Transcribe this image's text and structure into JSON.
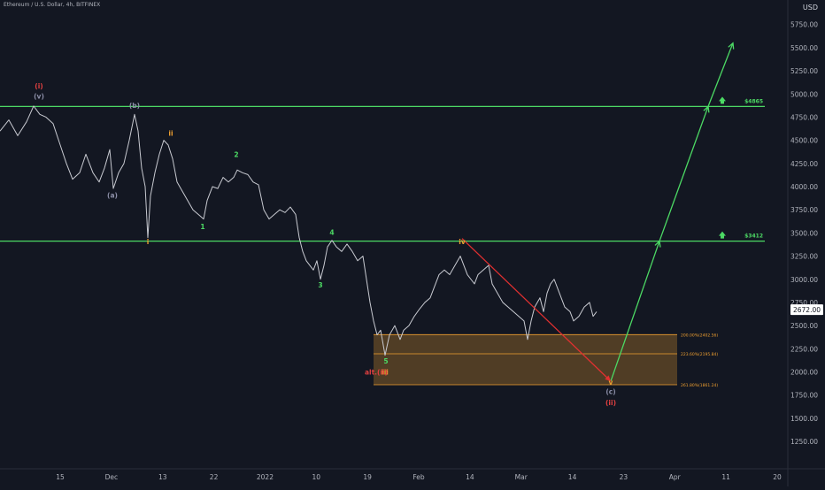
{
  "header": {
    "symbol_title": "Ethereum / U.S. Dollar, 4h, BITFINEX",
    "currency": "USD"
  },
  "chart_data": {
    "type": "line",
    "y_ticks": [
      "1250.00",
      "1500.00",
      "1750.00",
      "2000.00",
      "2250.00",
      "2500.00",
      "2750.00",
      "3000.00",
      "3250.00",
      "3500.00",
      "3750.00",
      "4000.00",
      "4250.00",
      "4500.00",
      "4750.00",
      "5000.00",
      "5250.00",
      "5500.00",
      "5750.00"
    ],
    "ylim": [
      1050,
      5900
    ],
    "x_tick_labels": [
      "15",
      "Dec",
      "13",
      "22",
      "2022",
      "10",
      "19",
      "Feb",
      "14",
      "Mar",
      "14",
      "23",
      "Apr",
      "11",
      "20"
    ],
    "current_price": "2672.00",
    "current_price_value": 2672,
    "levels": [
      {
        "label": "$4865",
        "value": 4865,
        "color": "#4cd964"
      },
      {
        "label": "$3412",
        "value": 3412,
        "color": "#4cd964"
      }
    ],
    "fib_zone": {
      "color": "#f0a030",
      "levels": [
        {
          "label": "200.00%(2402.56)",
          "value": 2402.56
        },
        {
          "label": "223.60%(2195.84)",
          "value": 2195.84
        },
        {
          "label": "261.80%(1861.24)",
          "value": 1861.24
        }
      ]
    },
    "price_series": {
      "name": "",
      "color": "#c8cad1",
      "points": [
        [
          0,
          4600
        ],
        [
          10,
          4720
        ],
        [
          20,
          4550
        ],
        [
          30,
          4700
        ],
        [
          38,
          4870
        ],
        [
          45,
          4780
        ],
        [
          52,
          4750
        ],
        [
          60,
          4680
        ],
        [
          68,
          4450
        ],
        [
          75,
          4250
        ],
        [
          82,
          4080
        ],
        [
          90,
          4150
        ],
        [
          97,
          4350
        ],
        [
          105,
          4150
        ],
        [
          112,
          4050
        ],
        [
          118,
          4200
        ],
        [
          124,
          4400
        ],
        [
          128,
          3980
        ],
        [
          134,
          4150
        ],
        [
          140,
          4250
        ],
        [
          146,
          4500
        ],
        [
          152,
          4780
        ],
        [
          156,
          4600
        ],
        [
          160,
          4200
        ],
        [
          164,
          4000
        ],
        [
          167,
          3450
        ],
        [
          170,
          3900
        ],
        [
          175,
          4150
        ],
        [
          180,
          4350
        ],
        [
          185,
          4500
        ],
        [
          190,
          4450
        ],
        [
          195,
          4300
        ],
        [
          200,
          4050
        ],
        [
          206,
          3950
        ],
        [
          212,
          3850
        ],
        [
          218,
          3750
        ],
        [
          224,
          3700
        ],
        [
          230,
          3650
        ],
        [
          234,
          3850
        ],
        [
          240,
          4000
        ],
        [
          246,
          3980
        ],
        [
          252,
          4100
        ],
        [
          258,
          4050
        ],
        [
          264,
          4100
        ],
        [
          268,
          4180
        ],
        [
          274,
          4150
        ],
        [
          280,
          4130
        ],
        [
          286,
          4050
        ],
        [
          292,
          4020
        ],
        [
          298,
          3750
        ],
        [
          304,
          3650
        ],
        [
          310,
          3700
        ],
        [
          316,
          3750
        ],
        [
          322,
          3720
        ],
        [
          328,
          3780
        ],
        [
          334,
          3700
        ],
        [
          338,
          3450
        ],
        [
          342,
          3300
        ],
        [
          346,
          3200
        ],
        [
          350,
          3150
        ],
        [
          354,
          3100
        ],
        [
          358,
          3200
        ],
        [
          362,
          3000
        ],
        [
          366,
          3150
        ],
        [
          370,
          3350
        ],
        [
          375,
          3420
        ],
        [
          380,
          3350
        ],
        [
          386,
          3300
        ],
        [
          392,
          3380
        ],
        [
          398,
          3300
        ],
        [
          404,
          3200
        ],
        [
          410,
          3250
        ],
        [
          414,
          3000
        ],
        [
          418,
          2750
        ],
        [
          422,
          2550
        ],
        [
          426,
          2400
        ],
        [
          430,
          2450
        ],
        [
          435,
          2180
        ],
        [
          440,
          2400
        ],
        [
          446,
          2500
        ],
        [
          452,
          2350
        ],
        [
          456,
          2450
        ],
        [
          462,
          2500
        ],
        [
          468,
          2600
        ],
        [
          474,
          2680
        ],
        [
          480,
          2750
        ],
        [
          486,
          2800
        ],
        [
          490,
          2900
        ],
        [
          496,
          3050
        ],
        [
          502,
          3100
        ],
        [
          508,
          3050
        ],
        [
          514,
          3150
        ],
        [
          520,
          3250
        ],
        [
          524,
          3150
        ],
        [
          528,
          3050
        ],
        [
          532,
          3000
        ],
        [
          536,
          2950
        ],
        [
          540,
          3050
        ],
        [
          546,
          3100
        ],
        [
          552,
          3150
        ],
        [
          556,
          2950
        ],
        [
          562,
          2850
        ],
        [
          568,
          2750
        ],
        [
          574,
          2700
        ],
        [
          580,
          2650
        ],
        [
          586,
          2600
        ],
        [
          592,
          2550
        ],
        [
          596,
          2350
        ],
        [
          600,
          2550
        ],
        [
          604,
          2700
        ],
        [
          610,
          2800
        ],
        [
          614,
          2650
        ],
        [
          618,
          2850
        ],
        [
          622,
          2950
        ],
        [
          626,
          3000
        ],
        [
          630,
          2900
        ],
        [
          634,
          2800
        ],
        [
          638,
          2700
        ],
        [
          644,
          2650
        ],
        [
          648,
          2550
        ],
        [
          654,
          2600
        ],
        [
          660,
          2700
        ],
        [
          666,
          2750
        ],
        [
          670,
          2600
        ],
        [
          674,
          2650
        ]
      ]
    },
    "projection_series": {
      "name": "",
      "color": "#4cd964",
      "points": [
        [
          690,
          1900
        ],
        [
          745,
          3412
        ],
        [
          800,
          4865
        ],
        [
          828,
          5550
        ]
      ]
    },
    "correction_arrow": {
      "color": "#e03030",
      "points": [
        [
          522,
          3440
        ],
        [
          690,
          1900
        ]
      ]
    },
    "wave_labels": [
      {
        "text": "(i)",
        "x": 44,
        "y": 5060,
        "color": "#e04040"
      },
      {
        "text": "(v)",
        "x": 44,
        "y": 4950,
        "color": "#8c8fa8"
      },
      {
        "text": "(b)",
        "x": 152,
        "y": 4850,
        "color": "#8c8fa8"
      },
      {
        "text": "ii",
        "x": 193,
        "y": 4550,
        "color": "#f0a030"
      },
      {
        "text": "(a)",
        "x": 127,
        "y": 3880,
        "color": "#8c8fa8"
      },
      {
        "text": "i",
        "x": 167,
        "y": 3380,
        "color": "#f0a030"
      },
      {
        "text": "2",
        "x": 267,
        "y": 4320,
        "color": "#4cd964"
      },
      {
        "text": "1",
        "x": 229,
        "y": 3540,
        "color": "#4cd964"
      },
      {
        "text": "4",
        "x": 375,
        "y": 3480,
        "color": "#4cd964"
      },
      {
        "text": "3",
        "x": 362,
        "y": 2910,
        "color": "#4cd964"
      },
      {
        "text": "iv",
        "x": 522,
        "y": 3380,
        "color": "#f0a030"
      },
      {
        "text": "5",
        "x": 436,
        "y": 2090,
        "color": "#4cd964"
      },
      {
        "text": "iii",
        "x": 435,
        "y": 1970,
        "color": "#f0a030"
      },
      {
        "text": "alt.(ii)",
        "x": 425,
        "y": 1970,
        "color": "#e04040"
      },
      {
        "text": "v",
        "x": 690,
        "y": 1860,
        "color": "#f0a030"
      },
      {
        "text": "(c)",
        "x": 690,
        "y": 1760,
        "color": "#8c8fa8"
      },
      {
        "text": "(ii)",
        "x": 690,
        "y": 1640,
        "color": "#e04040"
      }
    ]
  }
}
